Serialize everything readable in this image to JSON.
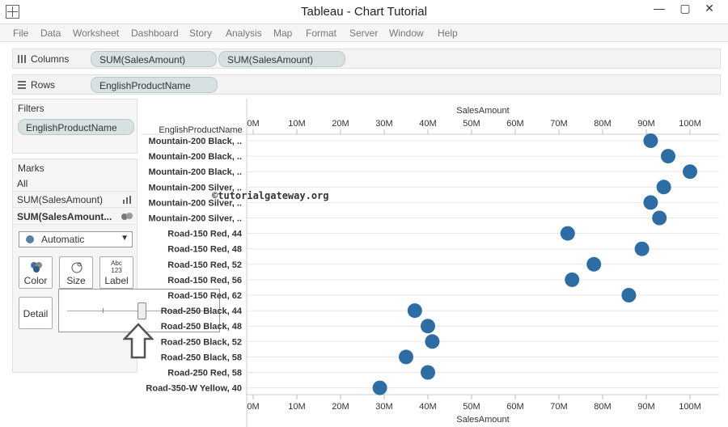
{
  "window": {
    "title": "Tableau - Chart Tutorial",
    "min": "—",
    "max": "▢",
    "close": "✕"
  },
  "menu": [
    "File",
    "Data",
    "Worksheet",
    "Dashboard",
    "Story",
    "Analysis",
    "Map",
    "Format",
    "Server",
    "Window",
    "Help"
  ],
  "shelves": {
    "columns_label": "Columns",
    "columns_pills": [
      "SUM(SalesAmount)",
      "SUM(SalesAmount)"
    ],
    "rows_label": "Rows",
    "rows_pills": [
      "EnglishProductName"
    ]
  },
  "filters": {
    "title": "Filters",
    "pill": "EnglishProductName"
  },
  "marks": {
    "title": "Marks",
    "all": "All",
    "row1": "SUM(SalesAmount)",
    "row2": "SUM(SalesAmount...",
    "mark_type": "Automatic",
    "buttons": {
      "color": "Color",
      "size": "Size",
      "label": "Label",
      "detail": "Detail",
      "label_icon_top": "Abc",
      "label_icon_bottom": "123"
    },
    "size_slider_level": 0.52
  },
  "watermark": "©tutorialgateway.org",
  "chart_data": {
    "type": "scatter",
    "row_header": "EnglishProductName",
    "xlabel_top": "SalesAmount",
    "xlabel_bottom": "SalesAmount",
    "xlim": [
      0,
      107
    ],
    "x_ticks": [
      "0M",
      "10M",
      "20M",
      "30M",
      "40M",
      "50M",
      "60M",
      "70M",
      "80M",
      "90M",
      "100M"
    ],
    "marker_color": "#2e6da4",
    "categories": [
      "Mountain-200 Black, ..",
      "Mountain-200 Black, ..",
      "Mountain-200 Black, ..",
      "Mountain-200 Silver, ..",
      "Mountain-200 Silver, ..",
      "Mountain-200 Silver, ..",
      "Road-150 Red, 44",
      "Road-150 Red, 48",
      "Road-150 Red, 52",
      "Road-150 Red, 56",
      "Road-150 Red, 62",
      "Road-250 Black, 44",
      "Road-250 Black, 48",
      "Road-250 Black, 52",
      "Road-250 Black, 58",
      "Road-250 Red, 58",
      "Road-350-W Yellow, 40"
    ],
    "values": [
      91,
      95,
      100,
      94,
      91,
      93,
      72,
      89,
      78,
      73,
      86,
      37,
      40,
      41,
      35,
      40,
      29
    ]
  }
}
